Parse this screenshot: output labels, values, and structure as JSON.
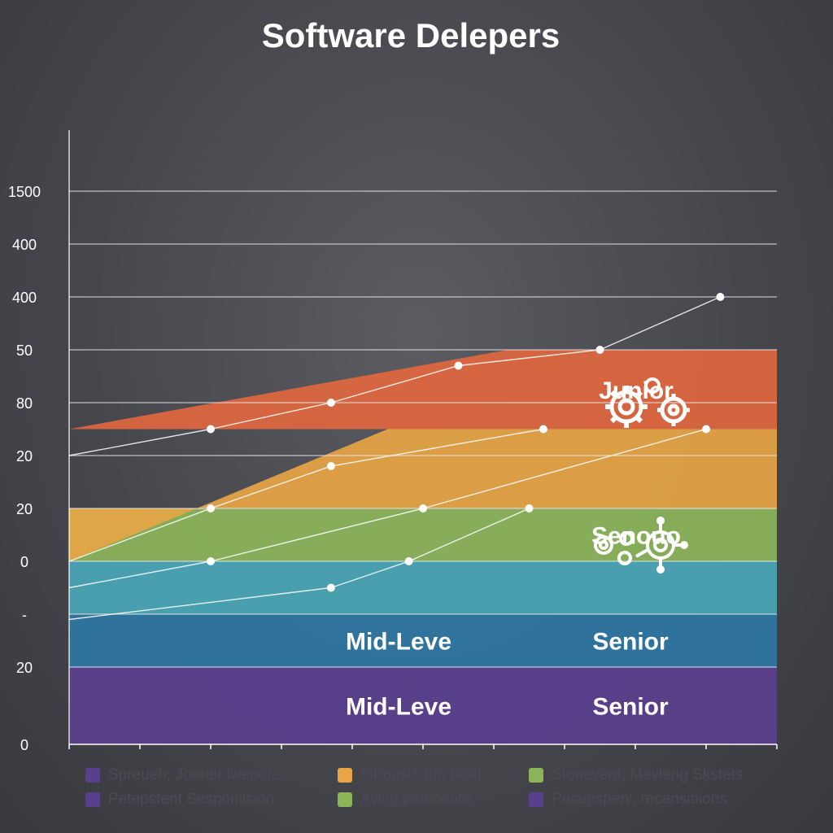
{
  "chart_data": {
    "type": "area",
    "title": "Software Delepers",
    "y_tick_labels": [
      "1500",
      "400",
      "400",
      "50",
      "80",
      "20",
      "20",
      "0",
      "-",
      "20",
      "0"
    ],
    "y_tick_values": [
      10,
      9,
      8,
      7,
      6,
      5,
      4,
      3,
      2,
      1,
      0
    ],
    "bands": [
      {
        "name": "Mid-Leve / Senior",
        "color": "#5a3f8e",
        "from": 0,
        "to": 1,
        "labels": [
          "Mid-Leve",
          "Senior"
        ]
      },
      {
        "name": "Mid-Leve / Senior",
        "color": "#2e76a3",
        "from": 1,
        "to": 2,
        "labels": [
          "Mid-Leve",
          "Senior"
        ]
      },
      {
        "name": "teal band",
        "color": "#4aa6b7",
        "from": 2,
        "to": 3,
        "labels": []
      },
      {
        "name": "Senouo",
        "color": "#8cb55b",
        "from": 3,
        "to": 4,
        "labels": [
          "Senouo"
        ]
      },
      {
        "name": "orange band",
        "color": "#e7a545",
        "from": 4,
        "to": 5.5,
        "labels": []
      },
      {
        "name": "Junior",
        "color": "#e0673f",
        "from": 5.5,
        "to": 7,
        "labels": [
          "Junior"
        ]
      }
    ],
    "series": [
      {
        "x": [
          0,
          2,
          3.7,
          5.5,
          7.5,
          9.2
        ],
        "y": [
          5.0,
          5.5,
          6.0,
          6.7,
          7.0,
          8.0
        ]
      },
      {
        "x": [
          0,
          2,
          3.7,
          6.7
        ],
        "y": [
          3.0,
          4.0,
          4.8,
          5.5
        ]
      },
      {
        "x": [
          0,
          2,
          5.0,
          9.0
        ],
        "y": [
          2.5,
          3.0,
          4.0,
          5.5
        ]
      },
      {
        "x": [
          0,
          3.7,
          4.8,
          6.5
        ],
        "y": [
          1.9,
          2.5,
          3.0,
          4.0
        ]
      }
    ],
    "x_ticks": 10,
    "grid": true
  },
  "legend": [
    {
      "label": "Spreueh; Joorair lwepörs",
      "color": "#5a3f8e"
    },
    {
      "label": "Introusi† frin Buat",
      "color": "#e7a545"
    },
    {
      "label": "Stoneyent, Mevieng Sķstets",
      "color": "#8cb55b"
    },
    {
      "label": "Petepstent Sesponiision",
      "color": "#5a3f8e"
    },
    {
      "label": "Aving palenente",
      "color": "#8cb55b"
    },
    {
      "label": "Pecepspen', recansibions",
      "color": "#5a3f8e"
    }
  ],
  "icons": [
    "gears-icon",
    "gears-network-icon"
  ]
}
